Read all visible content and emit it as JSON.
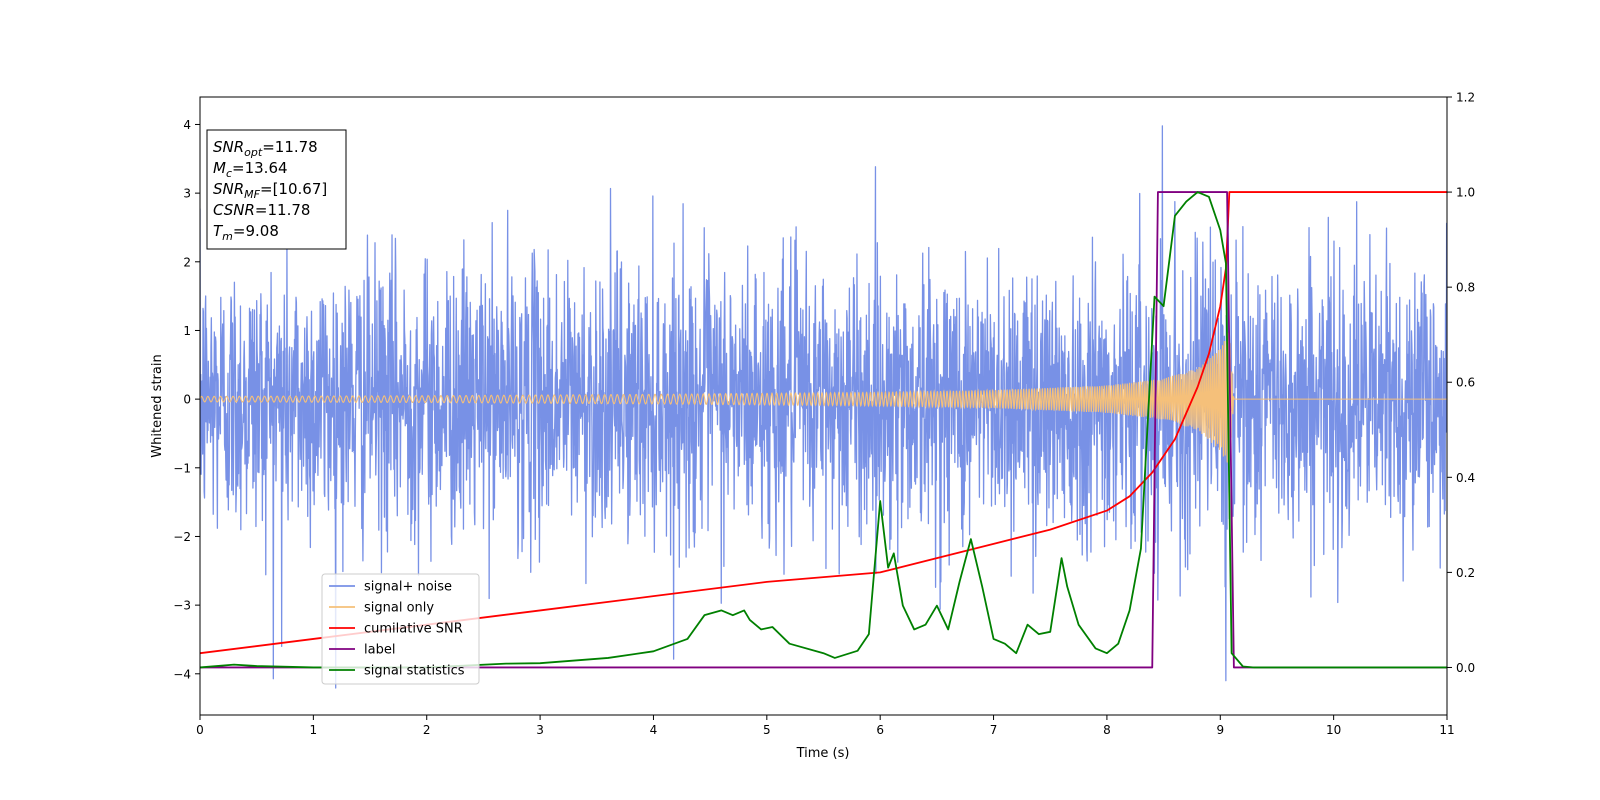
{
  "chart_data": {
    "type": "line",
    "title": "",
    "xlabel": "Time (s)",
    "ylabel": "Whitened strain",
    "ylabel_right": "",
    "xlim": [
      0,
      11
    ],
    "ylim": [
      -4.6,
      4.4
    ],
    "ylim_right": [
      -0.1,
      1.2
    ],
    "x_ticks": [
      0,
      1,
      2,
      3,
      4,
      5,
      6,
      7,
      8,
      9,
      10,
      11
    ],
    "x_tick_labels": [
      "0",
      "1",
      "2",
      "3",
      "4",
      "5",
      "6",
      "7",
      "8",
      "9",
      "10",
      "11"
    ],
    "y_ticks": [
      -4,
      -3,
      -2,
      -1,
      0,
      1,
      2,
      3,
      4
    ],
    "y_tick_labels": [
      "−4",
      "−3",
      "−2",
      "−1",
      "0",
      "1",
      "2",
      "3",
      "4"
    ],
    "y_right_ticks": [
      0.0,
      0.2,
      0.4,
      0.6,
      0.8,
      1.0,
      1.2
    ],
    "y_right_tick_labels": [
      "0.0",
      "0.2",
      "0.4",
      "0.6",
      "0.8",
      "1.0",
      "1.2"
    ],
    "grid": false,
    "legend_position": "lower-left",
    "annotation": {
      "lines": [
        {
          "sym": "SNR",
          "sub": "opt",
          "value": "=11.78"
        },
        {
          "sym": "M",
          "sub": "c",
          "value": "=13.64"
        },
        {
          "sym": "SNR",
          "sub": "MF",
          "value": "=[10.67]"
        },
        {
          "sym": "CSNR",
          "sub": "",
          "value": "=11.78"
        },
        {
          "sym": "T",
          "sub": "m",
          "value": "=9.08"
        }
      ]
    },
    "series": [
      {
        "name": "signal+ noise",
        "axis": "left",
        "color": "#7891e6",
        "description": "dense whitened noise, std about 1, spikes to about 4",
        "x_range": [
          0,
          11
        ],
        "noise_std": 1.0,
        "peaks": [
          {
            "x": 8.49,
            "y": 3.98
          },
          {
            "x": 9.05,
            "y": -4.1
          },
          {
            "x": 0.72,
            "y": -3.6
          }
        ]
      },
      {
        "name": "signal only",
        "axis": "left",
        "color": "#f5c07a",
        "description": "chirp, amplitude grows toward merger then stops",
        "x": [
          0,
          2,
          4,
          6,
          7,
          8,
          8.5,
          8.8,
          9.0,
          9.08,
          9.12,
          11
        ],
        "amplitude": [
          0.04,
          0.05,
          0.07,
          0.1,
          0.13,
          0.2,
          0.3,
          0.45,
          0.75,
          1.0,
          0.0,
          0.0
        ]
      },
      {
        "name": "cumilative SNR",
        "axis": "right",
        "color": "#ff0000",
        "x": [
          0,
          1,
          2,
          3,
          4,
          5,
          6,
          6.5,
          7,
          7.5,
          8,
          8.2,
          8.4,
          8.6,
          8.8,
          8.9,
          9.0,
          9.05,
          9.08,
          11
        ],
        "values": [
          0.03,
          0.06,
          0.09,
          0.12,
          0.15,
          0.18,
          0.2,
          0.23,
          0.26,
          0.29,
          0.33,
          0.36,
          0.41,
          0.48,
          0.59,
          0.66,
          0.76,
          0.84,
          1.0,
          1.0
        ]
      },
      {
        "name": "label",
        "axis": "right",
        "color": "#800080",
        "x": [
          0,
          8.4,
          8.45,
          9.06,
          9.12,
          11
        ],
        "values": [
          0,
          0,
          1,
          1,
          0,
          0
        ]
      },
      {
        "name": "signal statistics",
        "axis": "right",
        "color": "#008000",
        "x": [
          0,
          0.3,
          0.5,
          1.0,
          2.0,
          2.7,
          3.0,
          3.6,
          4.0,
          4.3,
          4.45,
          4.6,
          4.7,
          4.8,
          4.85,
          4.95,
          5.05,
          5.2,
          5.5,
          5.6,
          5.8,
          5.9,
          6.0,
          6.07,
          6.12,
          6.2,
          6.3,
          6.4,
          6.5,
          6.6,
          6.7,
          6.8,
          6.9,
          7.0,
          7.1,
          7.2,
          7.3,
          7.4,
          7.5,
          7.6,
          7.65,
          7.75,
          7.9,
          8.0,
          8.1,
          8.2,
          8.3,
          8.42,
          8.5,
          8.6,
          8.7,
          8.8,
          8.9,
          9.0,
          9.05,
          9.1,
          9.2,
          9.3,
          9.6,
          11
        ],
        "values": [
          0,
          0.006,
          0.003,
          0.0,
          0.0,
          0.008,
          0.009,
          0.02,
          0.034,
          0.06,
          0.11,
          0.12,
          0.11,
          0.12,
          0.1,
          0.08,
          0.085,
          0.05,
          0.03,
          0.02,
          0.035,
          0.07,
          0.35,
          0.21,
          0.24,
          0.13,
          0.08,
          0.09,
          0.13,
          0.08,
          0.18,
          0.27,
          0.17,
          0.06,
          0.05,
          0.03,
          0.09,
          0.07,
          0.075,
          0.23,
          0.17,
          0.09,
          0.04,
          0.03,
          0.05,
          0.12,
          0.25,
          0.78,
          0.76,
          0.95,
          0.98,
          1.0,
          0.99,
          0.92,
          0.85,
          0.03,
          0.002,
          0.0,
          0.0,
          0.0
        ]
      }
    ]
  }
}
